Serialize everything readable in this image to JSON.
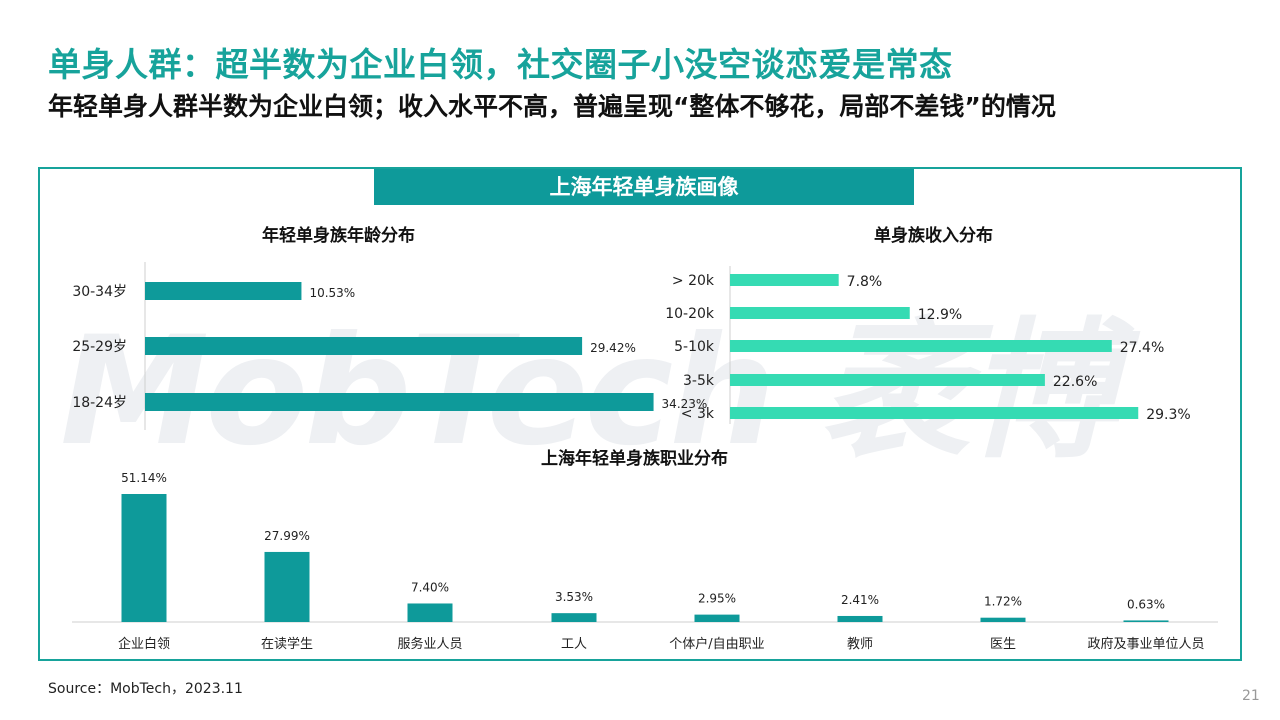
{
  "page": {
    "title": "单身人群：超半数为企业白领，社交圈子小没空谈恋爱是常态",
    "subtitle": "年轻单身人群半数为企业白领；收入水平不高，普遍呈现“整体不够花，局部不差钱”的情况",
    "panel_header": "上海年轻单身族画像",
    "watermark": "MobTech 袤博",
    "source": "Source：MobTech，2023.11",
    "page_number": "21"
  },
  "colors": {
    "teal": "#0e9a9a",
    "mint": "#35dbb3",
    "title_green": "#17a39b"
  },
  "chart_data": [
    {
      "type": "bar",
      "orientation": "horizontal",
      "title": "年轻单身族年龄分布",
      "categories": [
        "30-34岁",
        "25-29岁",
        "18-24岁"
      ],
      "values": [
        10.53,
        29.42,
        34.23
      ],
      "value_labels": [
        "10.53%",
        "29.42%",
        "34.23%"
      ],
      "unit": "%",
      "xlim": [
        0,
        35
      ],
      "grid": false,
      "color": "#0e9a9a"
    },
    {
      "type": "bar",
      "orientation": "horizontal",
      "title": "单身族收入分布",
      "categories": [
        "> 20k",
        "10-20k",
        "5-10k",
        "3-5k",
        "< 3k"
      ],
      "values": [
        7.8,
        12.9,
        27.4,
        22.6,
        29.3
      ],
      "value_labels": [
        "7.8%",
        "12.9%",
        "27.4%",
        "22.6%",
        "29.3%"
      ],
      "unit": "%",
      "xlim": [
        0,
        30
      ],
      "grid": false,
      "color": "#35dbb3"
    },
    {
      "type": "bar",
      "orientation": "vertical",
      "title": "上海年轻单身族职业分布",
      "categories": [
        "企业白领",
        "在读学生",
        "服务业人员",
        "工人",
        "个体户/自由职业",
        "教师",
        "医生",
        "政府及事业单位人员"
      ],
      "values": [
        51.14,
        27.99,
        7.4,
        3.53,
        2.95,
        2.41,
        1.72,
        0.63
      ],
      "value_labels": [
        "51.14%",
        "27.99%",
        "7.40%",
        "3.53%",
        "2.95%",
        "2.41%",
        "1.72%",
        "0.63%"
      ],
      "unit": "%",
      "ylim": [
        0,
        51.14
      ],
      "grid": false,
      "color": "#0e9a9a"
    }
  ]
}
